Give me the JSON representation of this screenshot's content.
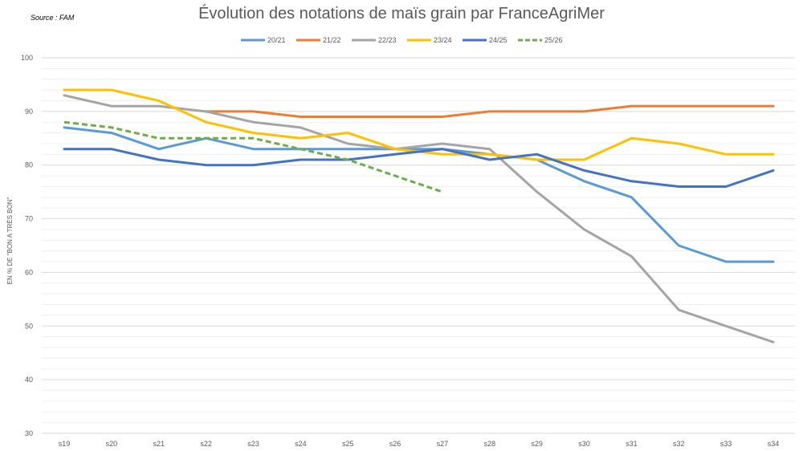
{
  "source": "Source : FAM",
  "chart_data": {
    "type": "line",
    "title": "Évolution des notations de maïs grain par FranceAgriMer",
    "ylabel": "EN % DE \"BON A TRÈS BON\"",
    "xlabel": "",
    "ylim": [
      30,
      100
    ],
    "yticks": [
      30,
      40,
      50,
      60,
      70,
      80,
      90,
      100
    ],
    "grid": true,
    "legend_position": "top",
    "categories": [
      "s19",
      "s20",
      "s21",
      "s22",
      "s23",
      "s24",
      "s25",
      "s26",
      "s27",
      "s28",
      "s29",
      "s30",
      "s31",
      "s32",
      "s33",
      "s34"
    ],
    "series": [
      {
        "name": "20/21",
        "color": "#5b9bd5",
        "dashed": false,
        "values": [
          87,
          86,
          83,
          85,
          83,
          83,
          83,
          83,
          83,
          82,
          81,
          77,
          74,
          65,
          62,
          62
        ]
      },
      {
        "name": "21/22",
        "color": "#ed7d31",
        "dashed": false,
        "values": [
          null,
          null,
          null,
          90,
          90,
          89,
          89,
          89,
          89,
          90,
          90,
          90,
          91,
          91,
          91,
          91
        ]
      },
      {
        "name": "22/23",
        "color": "#a5a5a5",
        "dashed": false,
        "values": [
          93,
          91,
          91,
          90,
          88,
          87,
          84,
          83,
          84,
          83,
          75,
          68,
          63,
          53,
          50,
          47
        ]
      },
      {
        "name": "23/24",
        "color": "#ffc000",
        "dashed": false,
        "values": [
          94,
          94,
          92,
          88,
          86,
          85,
          86,
          83,
          82,
          82,
          81,
          81,
          85,
          84,
          82,
          82
        ]
      },
      {
        "name": "24/25",
        "color": "#4472c4",
        "dashed": false,
        "values": [
          83,
          83,
          81,
          80,
          80,
          81,
          81,
          82,
          83,
          81,
          82,
          79,
          77,
          76,
          76,
          79
        ]
      },
      {
        "name": "25/26",
        "color": "#70ad47",
        "dashed": true,
        "values": [
          88,
          87,
          85,
          85,
          85,
          83,
          81,
          78,
          75,
          null,
          null,
          null,
          null,
          null,
          null,
          null
        ]
      }
    ]
  }
}
